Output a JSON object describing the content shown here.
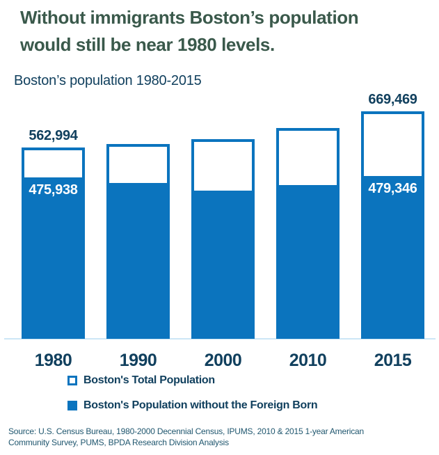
{
  "page": {
    "title_line1": "Without immigrants Boston’s population",
    "title_line2": "would still be near 1980 levels.",
    "subtitle": "Boston’s population 1980-2015",
    "source_line1": "Source: U.S. Census Bureau, 1980-2000 Decennial Census, IPUMS, 2010 & 2015 1-year American",
    "source_line2": "Community Survey, PUMS, BPDA Research Division Analysis"
  },
  "colors": {
    "bar_blue": "#0B74BE",
    "navy_text": "#11405E",
    "title_green": "#3A594B",
    "bar_interior_white": "#FFFFFF",
    "inner_label_white": "#FFFFFF",
    "baseline_light_blue": "#CCE6F6",
    "source_text": "#1F566E"
  },
  "legend": [
    {
      "label": "Boston's Total Population",
      "swatch": "hollow"
    },
    {
      "label": "Boston's Population without the Foreign Born",
      "swatch": "filled"
    }
  ],
  "chart_data": {
    "type": "bar",
    "subtype": "overlaid-bars",
    "title": "Boston’s population 1980-2015",
    "xlabel": "",
    "ylabel": "",
    "categories": [
      "1980",
      "1990",
      "2000",
      "2010",
      "2015"
    ],
    "series": [
      {
        "name": "Boston's Total Population",
        "style": "white fill, blue outline",
        "values": [
          562994,
          574000,
          589000,
          620000,
          669469
        ]
      },
      {
        "name": "Boston's Population without the Foreign Born",
        "style": "solid blue",
        "values": [
          475938,
          460000,
          436000,
          453000,
          479346
        ]
      }
    ],
    "estimated_categories": [
      "1990",
      "2000",
      "2010"
    ],
    "data_labels": {
      "total": {
        "1980": "562,994",
        "2015": "669,469"
      },
      "without_foreign_born": {
        "1980": "475,938",
        "2015": "479,346"
      }
    },
    "ylim": [
      0,
      700000
    ],
    "y_axis_shown": false,
    "gridlines": false,
    "legend_position": "below chart, left-indented, stacked rows"
  }
}
